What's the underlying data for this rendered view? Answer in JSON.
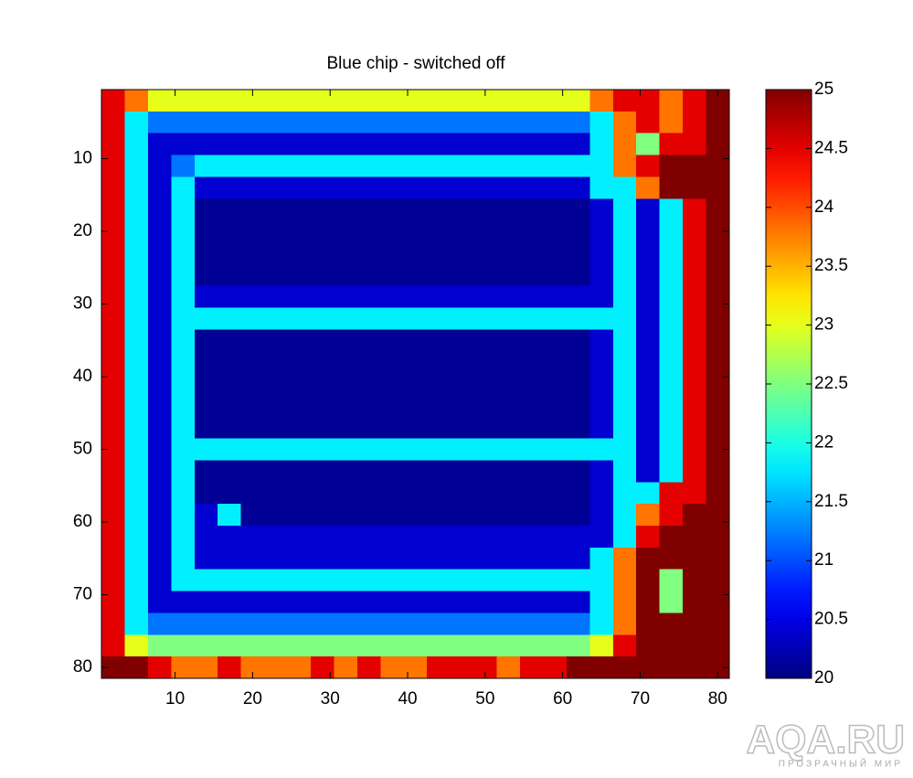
{
  "chart_data": {
    "type": "heatmap",
    "title": "Blue chip - switched off",
    "colormap": "jet",
    "xlim": [
      0.5,
      81.5
    ],
    "ylim": [
      81.5,
      0.5
    ],
    "xticks": [
      10,
      20,
      30,
      40,
      50,
      60,
      70,
      80
    ],
    "yticks": [
      10,
      20,
      30,
      40,
      50,
      60,
      70,
      80
    ],
    "clim": [
      20,
      25
    ],
    "cticks": [
      20,
      20.5,
      21,
      21.5,
      22,
      22.5,
      23,
      23.5,
      24,
      24.5,
      25
    ],
    "x": [
      2,
      5,
      8,
      11,
      14,
      17,
      20,
      23,
      26,
      29,
      32,
      35,
      38,
      41,
      44,
      47,
      50,
      53,
      56,
      59,
      62,
      65,
      68,
      71,
      74,
      77,
      80
    ],
    "y": [
      2,
      5,
      8,
      11,
      14,
      17,
      20,
      23,
      26,
      29,
      32,
      35,
      38,
      41,
      44,
      47,
      50,
      53,
      56,
      59,
      62,
      65,
      68,
      71,
      74,
      77,
      80
    ],
    "z": [
      [
        24.5,
        23.8,
        23,
        23,
        23,
        23,
        23,
        23,
        23,
        23,
        23,
        23,
        23,
        23,
        23,
        23,
        23,
        23,
        23,
        23,
        23,
        23.8,
        24.5,
        24.5,
        23.8,
        24.5,
        25
      ],
      [
        24.5,
        21.8,
        21.2,
        21.2,
        21.2,
        21.2,
        21.2,
        21.2,
        21.2,
        21.2,
        21.2,
        21.2,
        21.2,
        21.2,
        21.2,
        21.2,
        21.2,
        21.2,
        21.2,
        21.2,
        21.2,
        21.8,
        23.8,
        24.5,
        23.8,
        24.5,
        25
      ],
      [
        24.5,
        21.8,
        20.4,
        20.4,
        20.4,
        20.4,
        20.4,
        20.4,
        20.4,
        20.4,
        20.4,
        20.4,
        20.4,
        20.4,
        20.4,
        20.4,
        20.4,
        20.4,
        20.4,
        20.4,
        20.4,
        21.8,
        23.8,
        22.5,
        24.5,
        24.5,
        25
      ],
      [
        24.5,
        21.8,
        20.4,
        21.2,
        21.8,
        21.8,
        21.8,
        21.8,
        21.8,
        21.8,
        21.8,
        21.8,
        21.8,
        21.8,
        21.8,
        21.8,
        21.8,
        21.8,
        21.8,
        21.8,
        21.8,
        21.8,
        23.8,
        24.5,
        25,
        25,
        25
      ],
      [
        24.5,
        21.8,
        20.4,
        21.8,
        20.4,
        20.4,
        20.4,
        20.4,
        20.4,
        20.4,
        20.4,
        20.4,
        20.4,
        20.4,
        20.4,
        20.4,
        20.4,
        20.4,
        20.4,
        20.4,
        20.4,
        21.8,
        21.8,
        23.8,
        25,
        25,
        25
      ],
      [
        24.5,
        21.8,
        20.4,
        21.8,
        20.1,
        20.1,
        20.1,
        20.1,
        20.1,
        20.1,
        20.1,
        20.1,
        20.1,
        20.1,
        20.1,
        20.1,
        20.1,
        20.1,
        20.1,
        20.1,
        20.1,
        20.4,
        21.8,
        20.4,
        21.8,
        24.5,
        25
      ],
      [
        24.5,
        21.8,
        20.4,
        21.8,
        20.1,
        20.1,
        20.1,
        20.1,
        20.1,
        20.1,
        20.1,
        20.1,
        20.1,
        20.1,
        20.1,
        20.1,
        20.1,
        20.1,
        20.1,
        20.1,
        20.1,
        20.4,
        21.8,
        20.4,
        21.8,
        24.5,
        25
      ],
      [
        24.5,
        21.8,
        20.4,
        21.8,
        20.1,
        20.1,
        20.1,
        20.1,
        20.1,
        20.1,
        20.1,
        20.1,
        20.1,
        20.1,
        20.1,
        20.1,
        20.1,
        20.1,
        20.1,
        20.1,
        20.1,
        20.4,
        21.8,
        20.4,
        21.8,
        24.5,
        25
      ],
      [
        24.5,
        21.8,
        20.4,
        21.8,
        20.1,
        20.1,
        20.1,
        20.1,
        20.1,
        20.1,
        20.1,
        20.1,
        20.1,
        20.1,
        20.1,
        20.1,
        20.1,
        20.1,
        20.1,
        20.1,
        20.1,
        20.4,
        21.8,
        20.4,
        21.8,
        24.5,
        25
      ],
      [
        24.5,
        21.8,
        20.4,
        21.8,
        20.4,
        20.4,
        20.4,
        20.4,
        20.4,
        20.4,
        20.4,
        20.4,
        20.4,
        20.4,
        20.4,
        20.4,
        20.4,
        20.4,
        20.4,
        20.4,
        20.4,
        20.4,
        21.8,
        20.4,
        21.8,
        24.5,
        25
      ],
      [
        24.5,
        21.8,
        20.4,
        21.8,
        21.8,
        21.8,
        21.8,
        21.8,
        21.8,
        21.8,
        21.8,
        21.8,
        21.8,
        21.8,
        21.8,
        21.8,
        21.8,
        21.8,
        21.8,
        21.8,
        21.8,
        21.8,
        21.8,
        20.4,
        21.8,
        24.5,
        25
      ],
      [
        24.5,
        21.8,
        20.4,
        21.8,
        20.1,
        20.1,
        20.1,
        20.1,
        20.1,
        20.1,
        20.1,
        20.1,
        20.1,
        20.1,
        20.1,
        20.1,
        20.1,
        20.1,
        20.1,
        20.1,
        20.1,
        20.4,
        21.8,
        20.4,
        21.8,
        24.5,
        25
      ],
      [
        24.5,
        21.8,
        20.4,
        21.8,
        20.1,
        20.1,
        20.1,
        20.1,
        20.1,
        20.1,
        20.1,
        20.1,
        20.1,
        20.1,
        20.1,
        20.1,
        20.1,
        20.1,
        20.1,
        20.1,
        20.1,
        20.4,
        21.8,
        20.4,
        21.8,
        24.5,
        25
      ],
      [
        24.5,
        21.8,
        20.4,
        21.8,
        20.1,
        20.1,
        20.1,
        20.1,
        20.1,
        20.1,
        20.1,
        20.1,
        20.1,
        20.1,
        20.1,
        20.1,
        20.1,
        20.1,
        20.1,
        20.1,
        20.1,
        20.4,
        21.8,
        20.4,
        21.8,
        24.5,
        25
      ],
      [
        24.5,
        21.8,
        20.4,
        21.8,
        20.1,
        20.1,
        20.1,
        20.1,
        20.1,
        20.1,
        20.1,
        20.1,
        20.1,
        20.1,
        20.1,
        20.1,
        20.1,
        20.1,
        20.1,
        20.1,
        20.1,
        20.4,
        21.8,
        20.4,
        21.8,
        24.5,
        25
      ],
      [
        24.5,
        21.8,
        20.4,
        21.8,
        20.1,
        20.1,
        20.1,
        20.1,
        20.1,
        20.1,
        20.1,
        20.1,
        20.1,
        20.1,
        20.1,
        20.1,
        20.1,
        20.1,
        20.1,
        20.1,
        20.1,
        20.4,
        21.8,
        20.4,
        21.8,
        24.5,
        25
      ],
      [
        24.5,
        21.8,
        20.4,
        21.8,
        21.8,
        21.8,
        21.8,
        21.8,
        21.8,
        21.8,
        21.8,
        21.8,
        21.8,
        21.8,
        21.8,
        21.8,
        21.8,
        21.8,
        21.8,
        21.8,
        21.8,
        21.8,
        21.8,
        20.4,
        21.8,
        24.5,
        25
      ],
      [
        24.5,
        21.8,
        20.4,
        21.8,
        20.1,
        20.1,
        20.1,
        20.1,
        20.1,
        20.1,
        20.1,
        20.1,
        20.1,
        20.1,
        20.1,
        20.1,
        20.1,
        20.1,
        20.1,
        20.1,
        20.1,
        20.4,
        21.8,
        20.4,
        21.8,
        24.5,
        25
      ],
      [
        24.5,
        21.8,
        20.4,
        21.8,
        20.1,
        20.1,
        20.1,
        20.1,
        20.1,
        20.1,
        20.1,
        20.1,
        20.1,
        20.1,
        20.1,
        20.1,
        20.1,
        20.1,
        20.1,
        20.1,
        20.1,
        20.4,
        21.8,
        21.8,
        24.5,
        24.5,
        25
      ],
      [
        24.5,
        21.8,
        20.4,
        21.8,
        20.4,
        21.8,
        20.1,
        20.1,
        20.1,
        20.1,
        20.1,
        20.1,
        20.1,
        20.1,
        20.1,
        20.1,
        20.1,
        20.1,
        20.1,
        20.1,
        20.1,
        20.4,
        21.8,
        23.8,
        24.5,
        25,
        25
      ],
      [
        24.5,
        21.8,
        20.4,
        21.8,
        20.4,
        20.4,
        20.4,
        20.4,
        20.4,
        20.4,
        20.4,
        20.4,
        20.4,
        20.4,
        20.4,
        20.4,
        20.4,
        20.4,
        20.4,
        20.4,
        20.4,
        20.4,
        21.8,
        24.5,
        25,
        25,
        25
      ],
      [
        24.5,
        21.8,
        20.4,
        21.8,
        20.4,
        20.4,
        20.4,
        20.4,
        20.4,
        20.4,
        20.4,
        20.4,
        20.4,
        20.4,
        20.4,
        20.4,
        20.4,
        20.4,
        20.4,
        20.4,
        20.4,
        21.8,
        23.8,
        25,
        25,
        25,
        25
      ],
      [
        24.5,
        21.8,
        20.4,
        21.8,
        21.8,
        21.8,
        21.8,
        21.8,
        21.8,
        21.8,
        21.8,
        21.8,
        21.8,
        21.8,
        21.8,
        21.8,
        21.8,
        21.8,
        21.8,
        21.8,
        21.8,
        21.8,
        23.8,
        25,
        22.5,
        25,
        25
      ],
      [
        24.5,
        21.8,
        20.4,
        20.4,
        20.4,
        20.4,
        20.4,
        20.4,
        20.4,
        20.4,
        20.4,
        20.4,
        20.4,
        20.4,
        20.4,
        20.4,
        20.4,
        20.4,
        20.4,
        20.4,
        20.4,
        21.8,
        23.8,
        25,
        22.5,
        25,
        25
      ],
      [
        24.5,
        21.8,
        21.2,
        21.2,
        21.2,
        21.2,
        21.2,
        21.2,
        21.2,
        21.2,
        21.2,
        21.2,
        21.2,
        21.2,
        21.2,
        21.2,
        21.2,
        21.2,
        21.2,
        21.2,
        21.2,
        21.8,
        23.8,
        25,
        25,
        25,
        25
      ],
      [
        24.5,
        23,
        22.5,
        22.5,
        22.5,
        22.5,
        22.5,
        22.5,
        22.5,
        22.5,
        22.5,
        22.5,
        22.5,
        22.5,
        22.5,
        22.5,
        22.5,
        22.5,
        22.5,
        22.5,
        22.5,
        23,
        24.5,
        25,
        25,
        25,
        25
      ],
      [
        25,
        25,
        24.5,
        23.8,
        23.8,
        24.5,
        23.8,
        23.8,
        23.8,
        24.5,
        23.8,
        24.5,
        23.8,
        23.8,
        24.5,
        24.5,
        24.5,
        23.8,
        24.5,
        24.5,
        25,
        25,
        25,
        25,
        25,
        25,
        25
      ]
    ]
  },
  "watermark": {
    "title": "AQA.RU",
    "subtitle": "ПРОЗРАЧНЫЙ МИР"
  }
}
